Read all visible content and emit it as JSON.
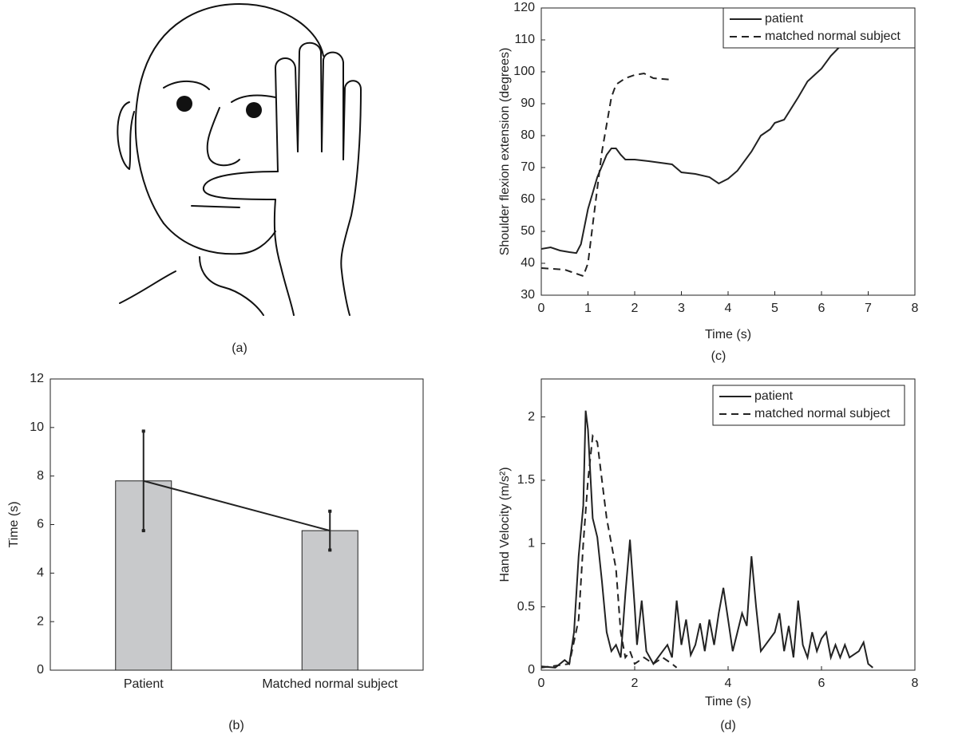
{
  "drawing_caption": "(a)",
  "chart_data": [
    {
      "type": "bar",
      "caption": "(b)",
      "ylabel": "Time (s)",
      "categories": [
        "Patient",
        "Matched normal subject"
      ],
      "values": [
        7.8,
        5.75
      ],
      "errors": [
        2.05,
        0.8
      ],
      "color": "#c8c9cb",
      "connect": true,
      "ylim": [
        0,
        12
      ],
      "yticks": [
        0,
        2,
        4,
        6,
        8,
        10,
        12
      ]
    },
    {
      "type": "line",
      "caption": "(c)",
      "xlabel": "Time (s)",
      "ylabel": "Shoulder flexion extension (degrees)",
      "xlim": [
        0,
        8
      ],
      "xticks": [
        0,
        1,
        2,
        3,
        4,
        5,
        6,
        7,
        8
      ],
      "ylim": [
        30,
        120
      ],
      "yticks": [
        30,
        40,
        50,
        60,
        70,
        80,
        90,
        100,
        110,
        120
      ],
      "legend": "upper right",
      "series": [
        {
          "name": "patient",
          "color": "#222222",
          "linestyle": "solid",
          "x": [
            0,
            0.2,
            0.4,
            0.6,
            0.75,
            0.85,
            1.0,
            1.2,
            1.4,
            1.5,
            1.6,
            1.7,
            1.8,
            2.0,
            2.3,
            2.8,
            3.0,
            3.3,
            3.6,
            3.8,
            4.0,
            4.2,
            4.5,
            4.7,
            4.9,
            5.0,
            5.2,
            5.5,
            5.7,
            6.0,
            6.2,
            6.4
          ],
          "values": [
            44.5,
            45,
            44,
            43.5,
            43.2,
            46,
            57,
            67,
            74,
            76,
            76,
            74,
            72.5,
            72.5,
            72,
            71,
            68.5,
            68,
            67,
            65,
            66.5,
            69,
            75,
            80,
            82,
            84,
            85,
            92,
            97,
            101,
            105,
            108
          ]
        },
        {
          "name": "matched normal subject",
          "color": "#222222",
          "linestyle": "dashed",
          "x": [
            0,
            0.5,
            0.9,
            1.0,
            1.1,
            1.3,
            1.5,
            1.6,
            1.8,
            2.0,
            2.2,
            2.4,
            2.8
          ],
          "values": [
            38.5,
            38,
            36,
            40,
            52,
            75,
            92,
            96,
            98,
            99,
            99.5,
            98,
            97.5
          ]
        }
      ]
    },
    {
      "type": "line",
      "caption": "(d)",
      "xlabel": "Time (s)",
      "ylabel": "Hand Velocity (m/s²)",
      "xlim": [
        0,
        8
      ],
      "xticks": [
        0,
        2,
        4,
        6,
        8
      ],
      "ylim": [
        0,
        2.3
      ],
      "yticks": [
        0,
        0.5,
        1,
        1.5,
        2
      ],
      "legend": "upper right",
      "series": [
        {
          "name": "patient",
          "color": "#222222",
          "linestyle": "solid",
          "x": [
            0,
            0.3,
            0.5,
            0.6,
            0.7,
            0.8,
            0.9,
            0.95,
            1.0,
            1.1,
            1.2,
            1.3,
            1.4,
            1.5,
            1.6,
            1.7,
            1.8,
            1.9,
            2.0,
            2.05,
            2.15,
            2.25,
            2.4,
            2.6,
            2.7,
            2.8,
            2.9,
            3.0,
            3.1,
            3.2,
            3.3,
            3.4,
            3.5,
            3.6,
            3.7,
            3.8,
            3.9,
            4.0,
            4.1,
            4.2,
            4.3,
            4.4,
            4.5,
            4.6,
            4.7,
            4.8,
            5.0,
            5.1,
            5.2,
            5.3,
            5.4,
            5.5,
            5.6,
            5.7,
            5.8,
            5.9,
            6.0,
            6.1,
            6.2,
            6.3,
            6.4,
            6.5,
            6.6,
            6.8,
            6.9,
            7.0,
            7.1
          ],
          "values": [
            0.03,
            0.02,
            0.08,
            0.05,
            0.3,
            0.9,
            1.3,
            2.05,
            1.9,
            1.2,
            1.05,
            0.7,
            0.3,
            0.15,
            0.2,
            0.1,
            0.6,
            1.03,
            0.5,
            0.2,
            0.55,
            0.15,
            0.05,
            0.15,
            0.2,
            0.1,
            0.55,
            0.2,
            0.4,
            0.12,
            0.2,
            0.37,
            0.15,
            0.4,
            0.2,
            0.45,
            0.65,
            0.4,
            0.15,
            0.3,
            0.45,
            0.35,
            0.9,
            0.5,
            0.15,
            0.2,
            0.3,
            0.45,
            0.15,
            0.35,
            0.1,
            0.55,
            0.2,
            0.1,
            0.3,
            0.15,
            0.25,
            0.3,
            0.1,
            0.2,
            0.1,
            0.2,
            0.1,
            0.15,
            0.22,
            0.05,
            0.02
          ]
        },
        {
          "name": "matched normal subject",
          "color": "#222222",
          "linestyle": "dashed",
          "x": [
            0,
            0.6,
            0.8,
            0.9,
            1.0,
            1.1,
            1.2,
            1.3,
            1.4,
            1.6,
            1.7,
            1.8,
            1.9,
            2.0,
            2.2,
            2.4,
            2.6,
            2.8,
            2.9
          ],
          "values": [
            0.02,
            0.05,
            0.4,
            1.0,
            1.5,
            1.85,
            1.8,
            1.5,
            1.2,
            0.8,
            0.3,
            0.1,
            0.15,
            0.05,
            0.1,
            0.05,
            0.1,
            0.05,
            0.02
          ]
        }
      ]
    }
  ]
}
